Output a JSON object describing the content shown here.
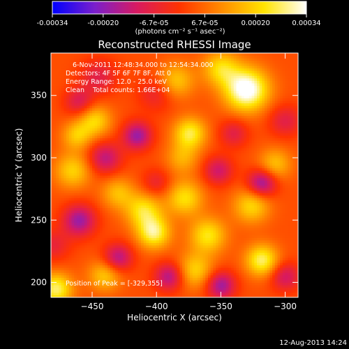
{
  "chart_data": {
    "type": "heatmap",
    "title": "Reconstructed RHESSI Image",
    "xlabel": "Heliocentric X (arcsec)",
    "ylabel": "Heliocentric Y (arcsec)",
    "xlim": [
      -482,
      -290
    ],
    "ylim": [
      188,
      384
    ],
    "x_ticks": [
      -450,
      -400,
      -350,
      -300
    ],
    "y_ticks": [
      200,
      250,
      300,
      350
    ],
    "colorbar": {
      "ticks": [
        "-0.00034",
        "-0.00020",
        "-6.7e-05",
        "6.7e-05",
        "0.00020",
        "0.00034"
      ],
      "units_label": "(photons cm⁻² s⁻¹ asec⁻²)",
      "range": [
        -0.00034,
        0.00034
      ],
      "colors": [
        "#0000ff",
        "#7a1fcc",
        "#d81a60",
        "#ff3300",
        "#ff8c00",
        "#ffe400",
        "#ffffff"
      ]
    },
    "annotations": [
      "6-Nov-2011 12:48:34.000 to 12:54:34.000",
      "Detectors: 4F 5F 6F 7F 8F, Att 0",
      "Energy Range: 12.0 - 25.0 keV",
      "Clean    Total counts: 1.66E+04"
    ],
    "peak_label": "Position of Peak = [-329,355]",
    "peak": [
      -329,
      355
    ],
    "blobs": [
      {
        "x": -330,
        "y": 355,
        "amp": 0.00034,
        "sigma": 12
      },
      {
        "x": -350,
        "y": 372,
        "amp": 0.00018,
        "sigma": 10
      },
      {
        "x": -374,
        "y": 320,
        "amp": 0.00022,
        "sigma": 9
      },
      {
        "x": -385,
        "y": 362,
        "amp": 0.00016,
        "sigma": 10
      },
      {
        "x": -448,
        "y": 330,
        "amp": 0.00018,
        "sigma": 9
      },
      {
        "x": -462,
        "y": 318,
        "amp": 0.00015,
        "sigma": 8
      },
      {
        "x": -465,
        "y": 290,
        "amp": 0.00017,
        "sigma": 10
      },
      {
        "x": -430,
        "y": 272,
        "amp": 0.00014,
        "sigma": 9
      },
      {
        "x": -410,
        "y": 258,
        "amp": 0.0002,
        "sigma": 10
      },
      {
        "x": -378,
        "y": 268,
        "amp": 0.00019,
        "sigma": 10
      },
      {
        "x": -402,
        "y": 240,
        "amp": 0.00024,
        "sigma": 9
      },
      {
        "x": -360,
        "y": 238,
        "amp": 0.0002,
        "sigma": 10
      },
      {
        "x": -326,
        "y": 262,
        "amp": 0.00018,
        "sigma": 10
      },
      {
        "x": -308,
        "y": 295,
        "amp": 0.00015,
        "sigma": 9
      },
      {
        "x": -370,
        "y": 210,
        "amp": 0.00017,
        "sigma": 10
      },
      {
        "x": -318,
        "y": 218,
        "amp": 0.00024,
        "sigma": 9
      },
      {
        "x": -440,
        "y": 206,
        "amp": 0.00016,
        "sigma": 9
      },
      {
        "x": -478,
        "y": 195,
        "amp": 0.00024,
        "sigma": 9
      },
      {
        "x": -380,
        "y": 300,
        "amp": 0.00012,
        "sigma": 9
      },
      {
        "x": -440,
        "y": 300,
        "amp": -0.00018,
        "sigma": 9
      },
      {
        "x": -415,
        "y": 318,
        "amp": -0.00022,
        "sigma": 8
      },
      {
        "x": -352,
        "y": 290,
        "amp": -0.00016,
        "sigma": 8
      },
      {
        "x": -318,
        "y": 280,
        "amp": -0.00024,
        "sigma": 8
      },
      {
        "x": -460,
        "y": 250,
        "amp": -0.00022,
        "sigma": 9
      },
      {
        "x": -430,
        "y": 220,
        "amp": -0.0002,
        "sigma": 8
      },
      {
        "x": -390,
        "y": 205,
        "amp": -0.0002,
        "sigma": 8
      },
      {
        "x": -350,
        "y": 198,
        "amp": -0.00022,
        "sigma": 8
      },
      {
        "x": -300,
        "y": 205,
        "amp": -0.00016,
        "sigma": 8
      },
      {
        "x": -400,
        "y": 352,
        "amp": -0.0001,
        "sigma": 10
      },
      {
        "x": -445,
        "y": 365,
        "amp": -0.00012,
        "sigma": 10
      },
      {
        "x": -460,
        "y": 345,
        "amp": -0.00014,
        "sigma": 8
      },
      {
        "x": -300,
        "y": 330,
        "amp": -0.00012,
        "sigma": 9
      },
      {
        "x": -340,
        "y": 320,
        "amp": -0.00012,
        "sigma": 8
      },
      {
        "x": -480,
        "y": 230,
        "amp": -0.0001,
        "sigma": 9
      },
      {
        "x": -400,
        "y": 280,
        "amp": -0.0001,
        "sigma": 8
      }
    ]
  },
  "footer_date": "12-Aug-2013 14:24"
}
